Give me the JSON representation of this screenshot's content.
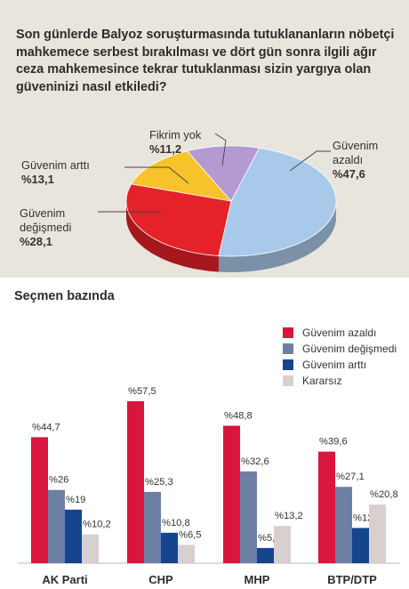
{
  "question": "Son günlerde Balyoz soruşturmasında tutuklananların nöbetçi mahkemece serbest bırakılması ve dört gün sonra ilgili ağır ceza mahkemesince tekrar tutuklanması sizin yargıya olan güveninizi nasıl etkiledi?",
  "section_title": "Seçmen bazında",
  "colors": {
    "panel_bg": "#e8e5dc",
    "red": "#d8163e",
    "gray_blue": "#6e7fa6",
    "navy": "#15458c",
    "light": "#d8cfcf",
    "pie_blue": "#a9c9ea",
    "pie_red": "#e52229",
    "pie_yellow": "#f8c22a",
    "pie_purple": "#b49ad1"
  },
  "pie_labels": [
    {
      "text": "Güvenim\nazaldı",
      "value": "%47,6"
    },
    {
      "text": "Güvenim\ndeğişmedi",
      "value": "%28,1"
    },
    {
      "text": "Güvenim arttı",
      "value": "%13,1"
    },
    {
      "text": "Fikrim yok",
      "value": "%11,2"
    }
  ],
  "legend": [
    {
      "label": "Güvenim azaldı",
      "color": "#d8163e"
    },
    {
      "label": "Güvenim değişmedi",
      "color": "#6e7fa6"
    },
    {
      "label": "Güvenim arttı",
      "color": "#15458c"
    },
    {
      "label": "Kararsız",
      "color": "#d8cfcf"
    }
  ],
  "chart_data": [
    {
      "type": "pie",
      "title": "",
      "labels": [
        "Güvenim azaldı",
        "Güvenim değişmedi",
        "Güvenim arttı",
        "Fikrim yok"
      ],
      "values": [
        47.6,
        28.1,
        13.1,
        11.2
      ],
      "value_labels": [
        "%47,6",
        "%28,1",
        "%13,1",
        "%11,2"
      ],
      "colors": [
        "#a9c9ea",
        "#e52229",
        "#f8c22a",
        "#b49ad1"
      ]
    },
    {
      "type": "bar",
      "title": "Seçmen bazında",
      "categories": [
        "AK Parti",
        "CHP",
        "MHP",
        "BTP/DTP"
      ],
      "series": [
        {
          "name": "Güvenim azaldı",
          "color": "#d8163e",
          "values": [
            44.7,
            57.5,
            48.8,
            39.6
          ],
          "labels": [
            "%44,7",
            "%57,5",
            "%48,8",
            "%39,6"
          ]
        },
        {
          "name": "Güvenim değişmedi",
          "color": "#6e7fa6",
          "values": [
            26,
            25.3,
            32.6,
            27.1
          ],
          "labels": [
            "%26",
            "%25,3",
            "%32,6",
            "%27,1"
          ]
        },
        {
          "name": "Güvenim arttı",
          "color": "#15458c",
          "values": [
            19,
            10.8,
            5.4,
            12.5
          ],
          "labels": [
            "%19",
            "%10,8",
            "%5,4",
            "%12,5"
          ]
        },
        {
          "name": "Kararsız",
          "color": "#d8cfcf",
          "values": [
            10.2,
            6.5,
            13.2,
            20.8
          ],
          "labels": [
            "%10,2",
            "%6,5",
            "%13,2",
            "%20,8"
          ]
        }
      ],
      "ylim": [
        0,
        60
      ],
      "grid": false,
      "legend_position": "top-right"
    }
  ]
}
